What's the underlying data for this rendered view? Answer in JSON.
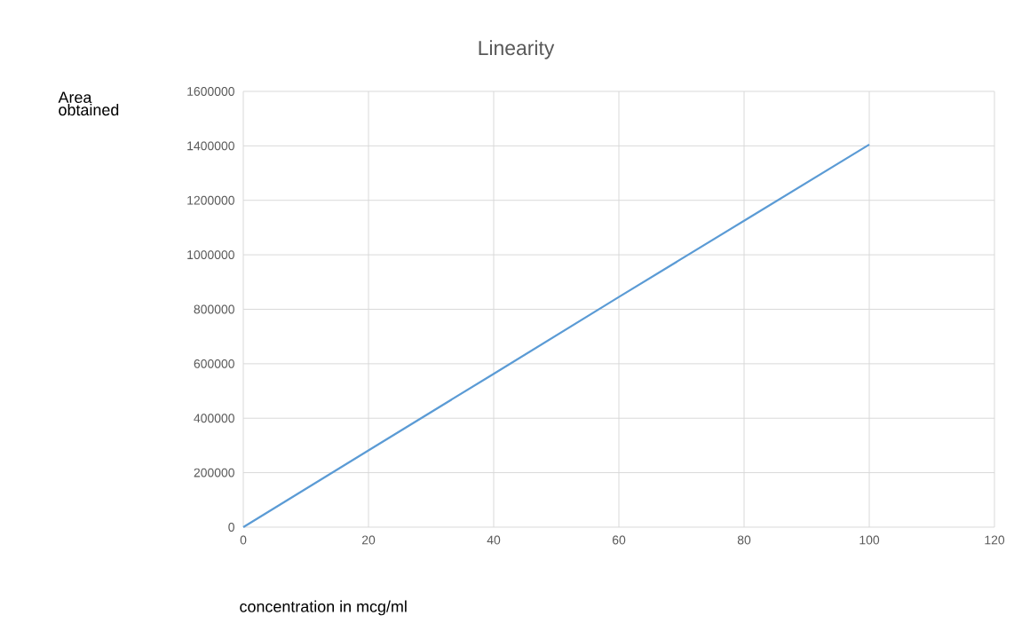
{
  "chart_data": {
    "type": "line",
    "title": "Linearity",
    "xlabel": "concentration in mcg/ml",
    "ylabel": "Area obtained",
    "x": [
      0,
      20,
      40,
      60,
      80,
      100
    ],
    "series": [
      {
        "color": "#5b9bd5",
        "values": [
          0,
          282000,
          563000,
          845000,
          1125000,
          1405000
        ]
      }
    ],
    "xlim": [
      0,
      120
    ],
    "xticks": [
      0,
      20,
      40,
      60,
      80,
      100,
      120
    ],
    "ylim": [
      0,
      1600000
    ],
    "yticks": [
      0,
      200000,
      400000,
      600000,
      800000,
      1000000,
      1200000,
      1400000,
      1600000
    ],
    "grid": true,
    "marker": "none",
    "line_style": "solid"
  }
}
